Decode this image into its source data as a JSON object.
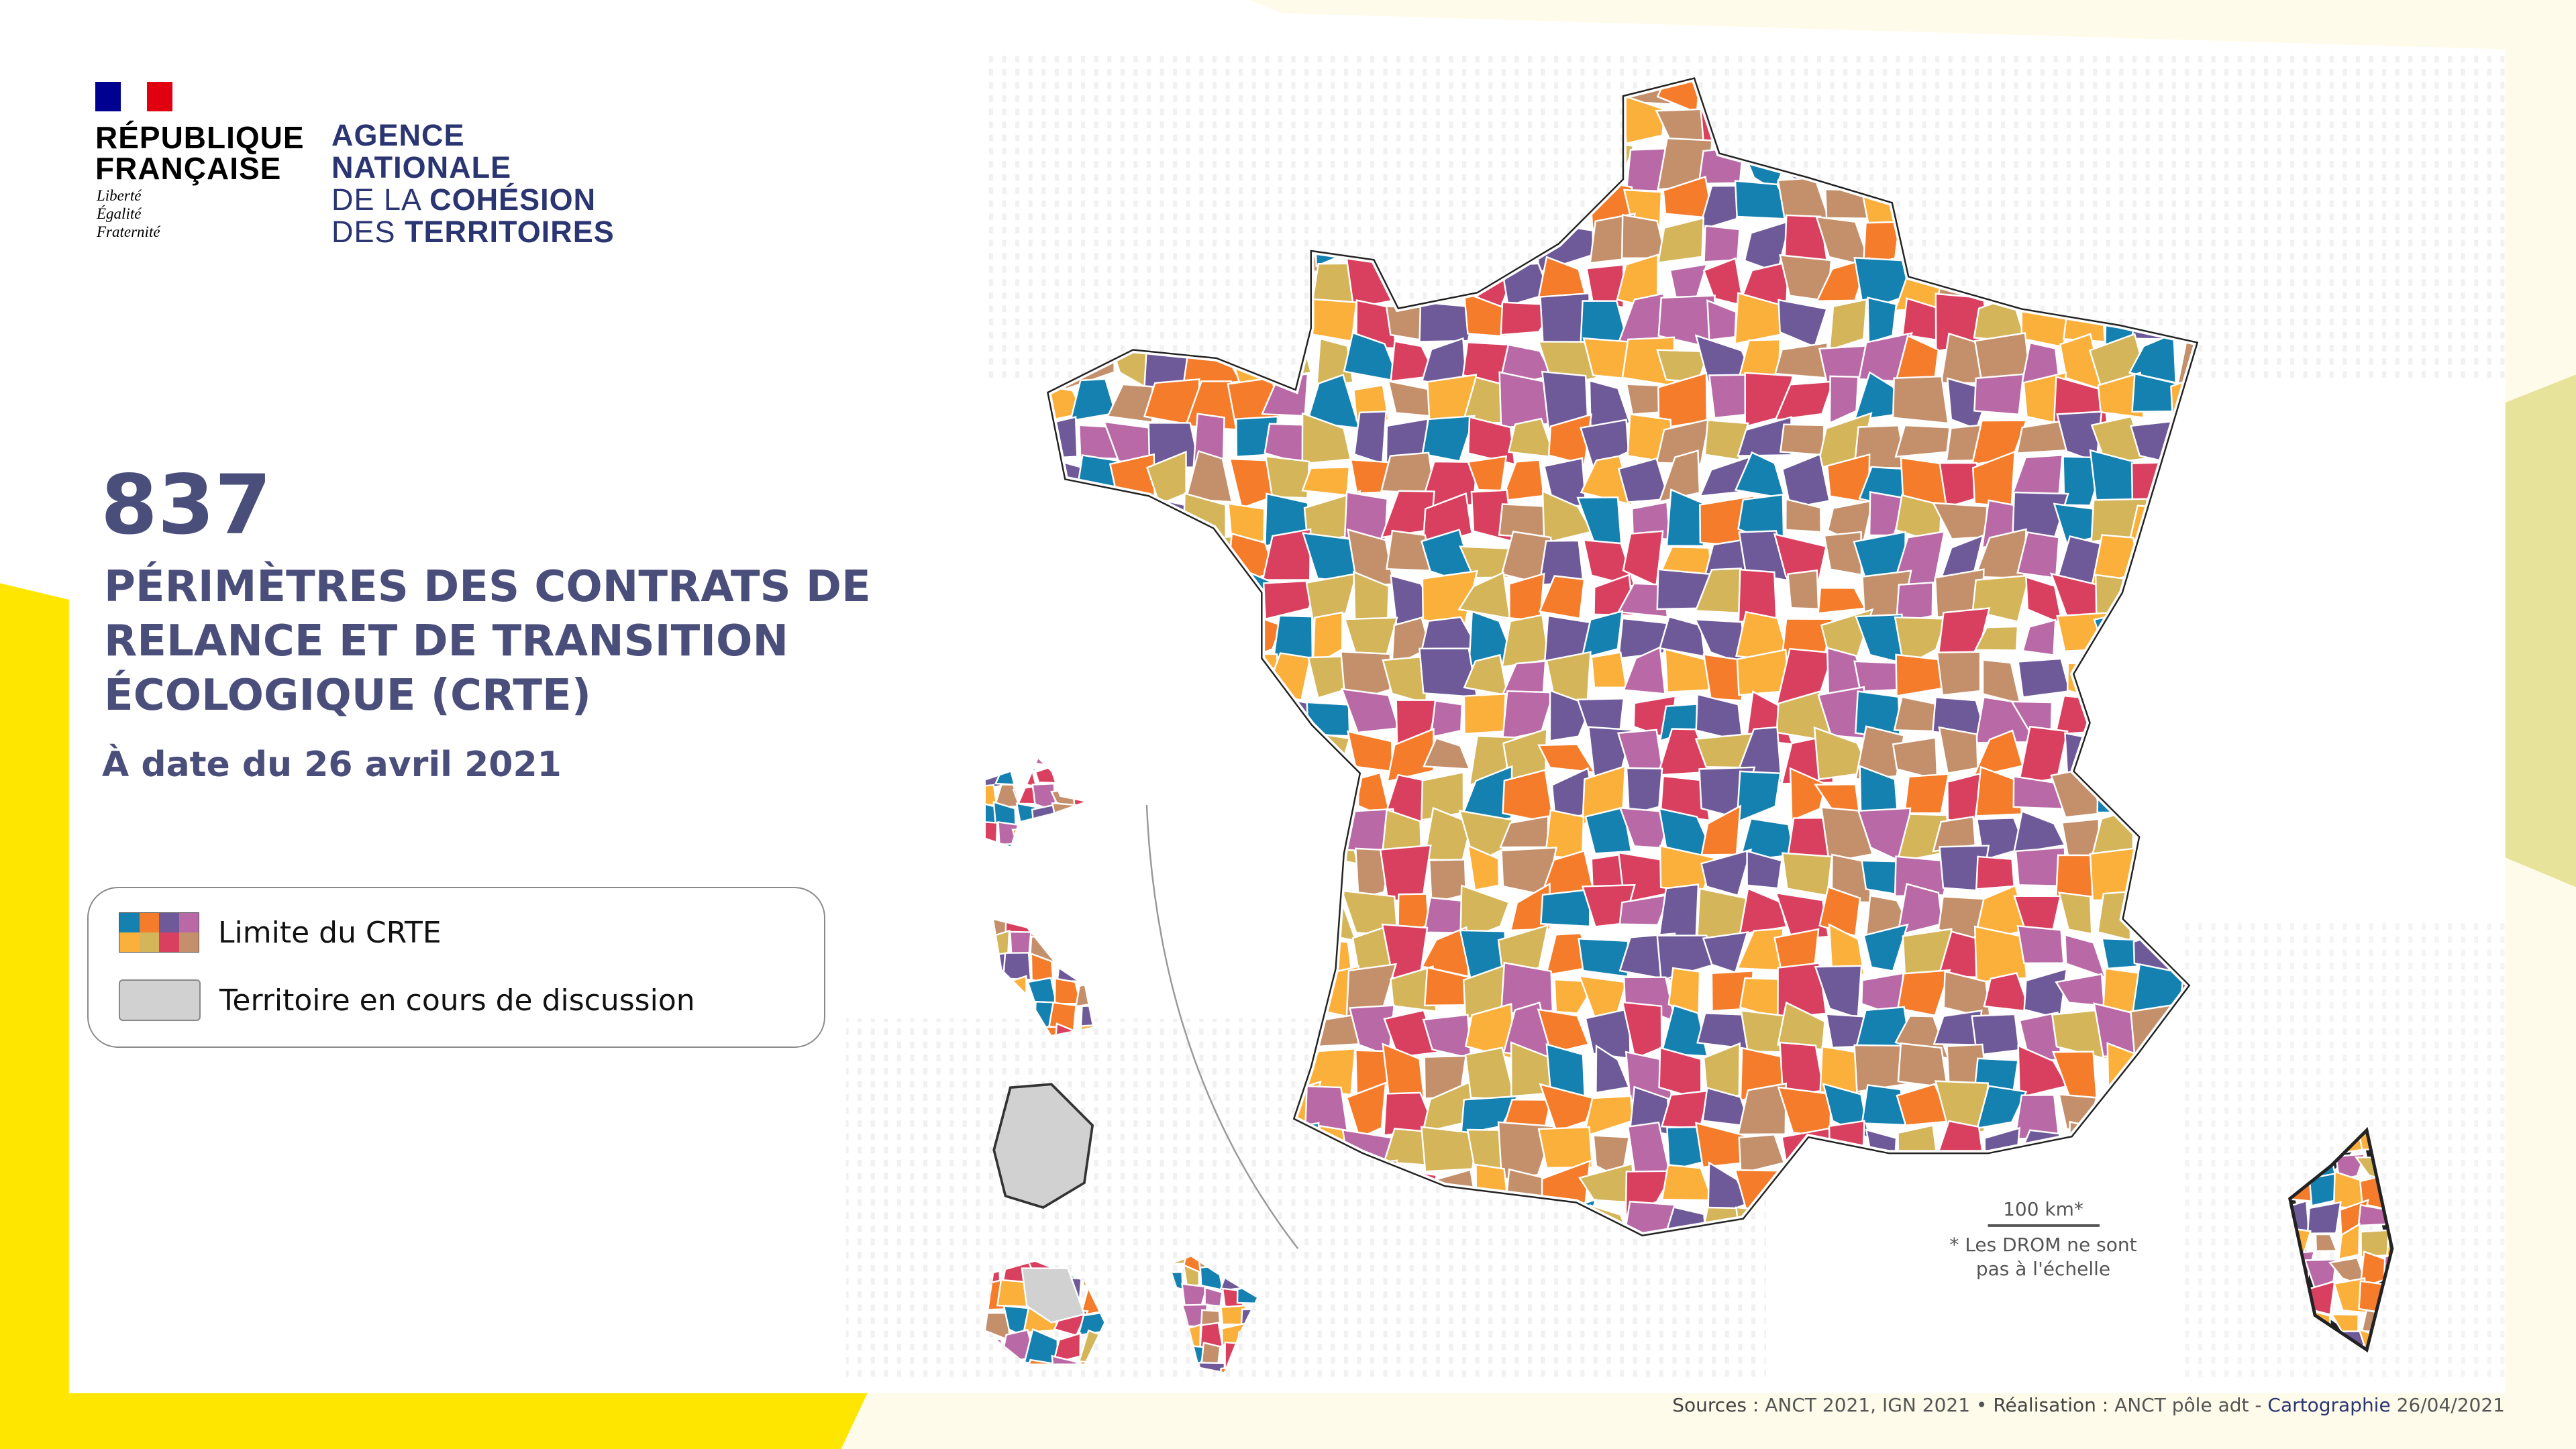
{
  "logo": {
    "republique": [
      "RÉPUBLIQUE",
      "FRANÇAISE"
    ],
    "motto": [
      "Liberté",
      "Égalité",
      "Fraternité"
    ],
    "agency_lines": [
      {
        "light": "",
        "bold": "AGENCE"
      },
      {
        "light": "",
        "bold": "NATIONALE"
      },
      {
        "light": "DE LA ",
        "bold": "COHÉSION"
      },
      {
        "light": "DES ",
        "bold": "TERRITOIRES"
      }
    ]
  },
  "headline": {
    "count": "837",
    "title_lines": [
      "PÉRIMÈTRES DES CONTRATS DE",
      "RELANCE ET DE TRANSITION",
      "ÉCOLOGIQUE (CRTE)"
    ],
    "date": "À date du 26 avril 2021"
  },
  "legend": {
    "items": [
      {
        "label": "Limite du CRTE",
        "swatch": "palette"
      },
      {
        "label": "Territoire en cours de discussion",
        "swatch": "#d1d1d1"
      }
    ]
  },
  "colors": {
    "palette": [
      "#1481b0",
      "#f47c2a",
      "#6e5a99",
      "#b96aa6",
      "#fbb03b",
      "#d4b55a",
      "#d9405f",
      "#c4906b"
    ],
    "discussion": "#d1d1d1",
    "text": "#4a4e7a",
    "accent_yellow": "#ffe600",
    "agency_blue": "#2a3572"
  },
  "scale": {
    "label": "100 km*",
    "note_lines": [
      "* Les DROM ne sont",
      "pas à l'échelle"
    ]
  },
  "footer": {
    "sources_label": "Sources :",
    "sources": " ANCT 2021, IGN 2021 • ",
    "realisation_label": "Réalisation :",
    "realisation": " ANCT pôle adt - ",
    "cartographie": "Cartographie",
    "date": " 26/04/2021"
  }
}
